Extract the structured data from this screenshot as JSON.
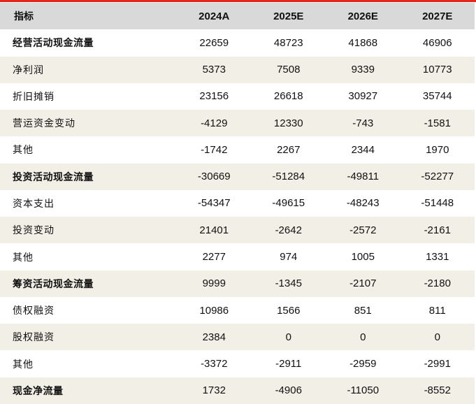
{
  "header": [
    "指标",
    "2024A",
    "2025E",
    "2026E",
    "2027E"
  ],
  "rows": [
    {
      "label": "经营活动现金流量",
      "values": [
        "22659",
        "48723",
        "41868",
        "46906"
      ],
      "bold": true
    },
    {
      "label": "净利润",
      "values": [
        "5373",
        "7508",
        "9339",
        "10773"
      ],
      "bold": false
    },
    {
      "label": "折旧摊销",
      "values": [
        "23156",
        "26618",
        "30927",
        "35744"
      ],
      "bold": false
    },
    {
      "label": "营运资金变动",
      "values": [
        "-4129",
        "12330",
        "-743",
        "-1581"
      ],
      "bold": false
    },
    {
      "label": "其他",
      "values": [
        "-1742",
        "2267",
        "2344",
        "1970"
      ],
      "bold": false
    },
    {
      "label": "投资活动现金流量",
      "values": [
        "-30669",
        "-51284",
        "-49811",
        "-52277"
      ],
      "bold": true
    },
    {
      "label": "资本支出",
      "values": [
        "-54347",
        "-49615",
        "-48243",
        "-51448"
      ],
      "bold": false
    },
    {
      "label": "投资变动",
      "values": [
        "21401",
        "-2642",
        "-2572",
        "-2161"
      ],
      "bold": false
    },
    {
      "label": "其他",
      "values": [
        "2277",
        "974",
        "1005",
        "1331"
      ],
      "bold": false
    },
    {
      "label": "筹资活动现金流量",
      "values": [
        "9999",
        "-1345",
        "-2107",
        "-2180"
      ],
      "bold": true
    },
    {
      "label": "债权融资",
      "values": [
        "10986",
        "1566",
        "851",
        "811"
      ],
      "bold": false
    },
    {
      "label": "股权融资",
      "values": [
        "2384",
        "0",
        "0",
        "0"
      ],
      "bold": false
    },
    {
      "label": "其他",
      "values": [
        "-3372",
        "-2911",
        "-2959",
        "-2991"
      ],
      "bold": false
    },
    {
      "label": "现金净流量",
      "values": [
        "1732",
        "-4906",
        "-11050",
        "-8552"
      ],
      "bold": true
    }
  ],
  "colors": {
    "accent": "#e2261c",
    "header_bg": "#d9d9d9",
    "alt_row_bg": "#f2efe6"
  }
}
